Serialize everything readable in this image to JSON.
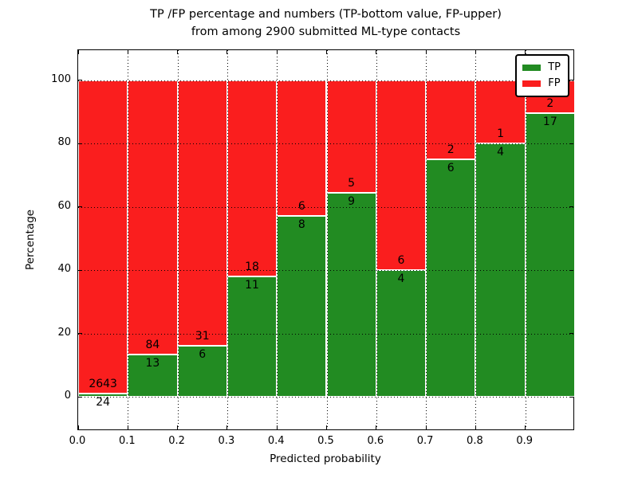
{
  "title": {
    "line1": "TP /FP percentage and numbers (TP-bottom value, FP-upper)",
    "line2": "from among 2900 submitted ML-type contacts"
  },
  "chart_data": {
    "type": "bar",
    "variant": "stacked-percentage-histogram",
    "title": "TP /FP percentage and numbers (TP-bottom value, FP-upper) from among 2900 submitted ML-type contacts",
    "total_contacts": 2900,
    "xlabel": "Predicted probability",
    "ylabel": "Percentage",
    "categories": [
      "0.0-0.1",
      "0.1-0.2",
      "0.2-0.3",
      "0.3-0.4",
      "0.4-0.5",
      "0.5-0.6",
      "0.6-0.7",
      "0.7-0.8",
      "0.8-0.9",
      "0.9-1.0"
    ],
    "bin_width": 0.1,
    "series": [
      {
        "name": "TP",
        "color": "#228B22",
        "counts": [
          24,
          13,
          6,
          11,
          8,
          9,
          4,
          6,
          4,
          17
        ]
      },
      {
        "name": "FP",
        "color": "#FA1E1E",
        "counts": [
          2643,
          84,
          31,
          18,
          6,
          5,
          6,
          2,
          1,
          2
        ]
      }
    ],
    "tp_percent": [
      0.9,
      13.4,
      16.2,
      37.9,
      57.1,
      64.3,
      40.0,
      75.0,
      80.0,
      89.5
    ],
    "fp_percent": [
      99.1,
      86.6,
      83.8,
      62.1,
      42.9,
      35.7,
      60.0,
      25.0,
      20.0,
      10.5
    ],
    "y_ticks": [
      0,
      20,
      40,
      60,
      80,
      100
    ],
    "x_ticks": [
      {
        "pos": 0.0,
        "label": "0.0"
      },
      {
        "pos": 0.1,
        "label": "0.1"
      },
      {
        "pos": 0.2,
        "label": "0.2"
      },
      {
        "pos": 0.3,
        "label": "0.3"
      },
      {
        "pos": 0.4,
        "label": "0.4"
      },
      {
        "pos": 0.5,
        "label": "0.5"
      },
      {
        "pos": 0.6,
        "label": "0.6"
      },
      {
        "pos": 0.7,
        "label": "0.7"
      },
      {
        "pos": 0.8,
        "label": "0.8"
      },
      {
        "pos": 0.9,
        "label": "0.9"
      }
    ],
    "xlim": [
      0.0,
      1.0
    ],
    "ylim": [
      -11,
      109
    ],
    "grid": true,
    "grid_style": "dotted",
    "legend": {
      "position": "upper right",
      "entries": [
        {
          "label": "TP",
          "color": "#228B22"
        },
        {
          "label": "FP",
          "color": "#FA1E1E"
        }
      ]
    }
  }
}
